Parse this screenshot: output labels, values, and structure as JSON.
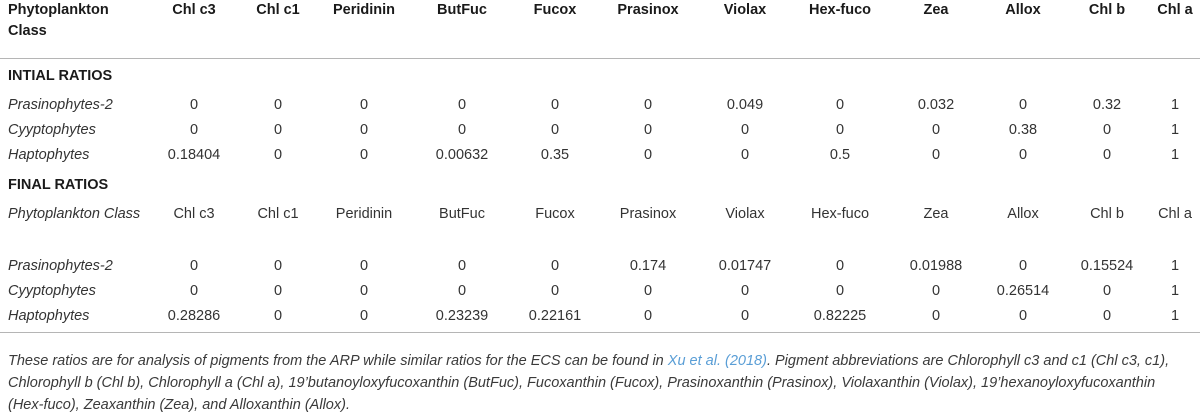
{
  "header": {
    "first": "Phytoplankton Class",
    "pigments": [
      "Chl c3",
      "Chl c1",
      "Peridinin",
      "ButFuc",
      "Fucox",
      "Prasinox",
      "Violax",
      "Hex-fuco",
      "Zea",
      "Allox",
      "Chl b",
      "Chl a"
    ]
  },
  "initial": {
    "label": "INTIAL RATIOS",
    "rows": [
      {
        "name": "Prasinophytes-2",
        "values": [
          "0",
          "0",
          "0",
          "0",
          "0",
          "0",
          "0.049",
          "0",
          "0.032",
          "0",
          "0.32",
          "1"
        ]
      },
      {
        "name": "Cyyptophytes",
        "values": [
          "0",
          "0",
          "0",
          "0",
          "0",
          "0",
          "0",
          "0",
          "0",
          "0.38",
          "0",
          "1"
        ]
      },
      {
        "name": "Haptophytes",
        "values": [
          "0.18404",
          "0",
          "0",
          "0.00632",
          "0.35",
          "0",
          "0",
          "0.5",
          "0",
          "0",
          "0",
          "1"
        ]
      }
    ]
  },
  "final": {
    "label": "FINAL RATIOS",
    "subheader": {
      "first": "Phytoplankton Class",
      "pigments": [
        "Chl c3",
        "Chl c1",
        "Peridinin",
        "ButFuc",
        "Fucox",
        "Prasinox",
        "Violax",
        "Hex-fuco",
        "Zea",
        "Allox",
        "Chl b",
        "Chl a"
      ]
    },
    "rows": [
      {
        "name": "Prasinophytes-2",
        "values": [
          "0",
          "0",
          "0",
          "0",
          "0",
          "0.174",
          "0.01747",
          "0",
          "0.01988",
          "0",
          "0.15524",
          "1"
        ]
      },
      {
        "name": "Cyyptophytes",
        "values": [
          "0",
          "0",
          "0",
          "0",
          "0",
          "0",
          "0",
          "0",
          "0",
          "0.26514",
          "0",
          "1"
        ]
      },
      {
        "name": "Haptophytes",
        "values": [
          "0.28286",
          "0",
          "0",
          "0.23239",
          "0.22161",
          "0",
          "0",
          "0.82225",
          "0",
          "0",
          "0",
          "1"
        ]
      }
    ]
  },
  "footnote": {
    "before": "These ratios are for analysis of pigments from the ARP while similar ratios for the ECS can be found in ",
    "link": "Xu et al. (2018)",
    "after": ". Pigment abbreviations are Chlorophyll c3 and c1 (Chl c3, c1), Chlorophyll b (Chl b), Chlorophyll a (Chl a), 19’butanoyloxyfucoxanthin (ButFuc), Fucoxanthin (Fucox), Prasinoxanthin (Prasinox), Violaxanthin (Violax), 19’hexanoyloxyfucoxanthin (Hex-fuco), Zeaxanthin (Zea), and Alloxanthin (Allox)."
  }
}
